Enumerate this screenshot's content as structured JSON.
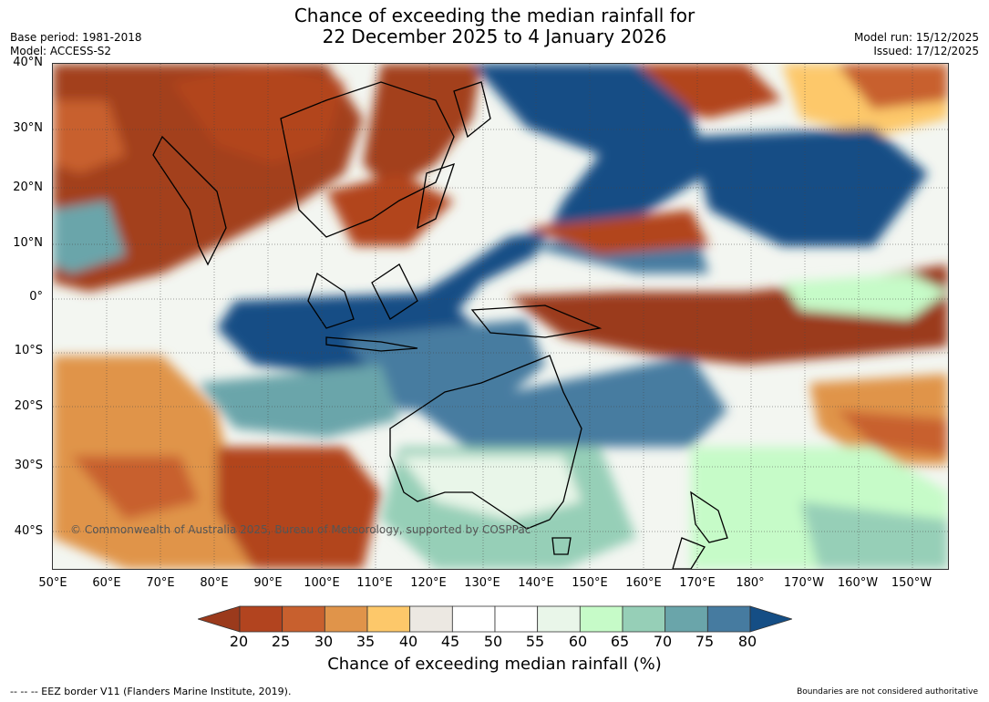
{
  "header": {
    "title_line1": "Chance of exceeding the median rainfall for",
    "title_line2": "22 December 2025 to 4 January 2026",
    "base_period": "Base period: 1981-2018",
    "model": "Model: ACCESS-S2",
    "model_run": "Model run: 15/12/2025",
    "issued": "Issued: 17/12/2025"
  },
  "map": {
    "lat_labels": [
      "40°N",
      "30°N",
      "20°N",
      "10°N",
      "0°",
      "10°S",
      "20°S",
      "30°S",
      "40°S"
    ],
    "lon_labels": [
      "50°E",
      "60°E",
      "70°E",
      "80°E",
      "90°E",
      "100°E",
      "110°E",
      "120°E",
      "130°E",
      "140°E",
      "150°E",
      "160°E",
      "170°E",
      "180°",
      "170°W",
      "160°W",
      "150°W"
    ],
    "copyright": "© Commonwealth of Australia 2025, Bureau of Meteorology, supported by COSPPac"
  },
  "colorbar": {
    "ticks": [
      "20",
      "25",
      "30",
      "35",
      "40",
      "45",
      "50",
      "55",
      "60",
      "65",
      "70",
      "75",
      "80"
    ],
    "colors": [
      "#9b3a1c",
      "#b2441f",
      "#c8602e",
      "#e0944a",
      "#fdc86a",
      "#ece8e2",
      "#ffffff",
      "#ffffff",
      "#e9f6e9",
      "#c6fbc8",
      "#96cfb7",
      "#6aa5aa",
      "#467ba0",
      "#154e85"
    ],
    "label": "Chance of exceeding median rainfall (%)"
  },
  "footer": {
    "eez_note": "-- -- -- EEZ border V11 (Flanders Marine Institute, 2019).",
    "disclaimer": "Boundaries are not considered authoritative"
  }
}
